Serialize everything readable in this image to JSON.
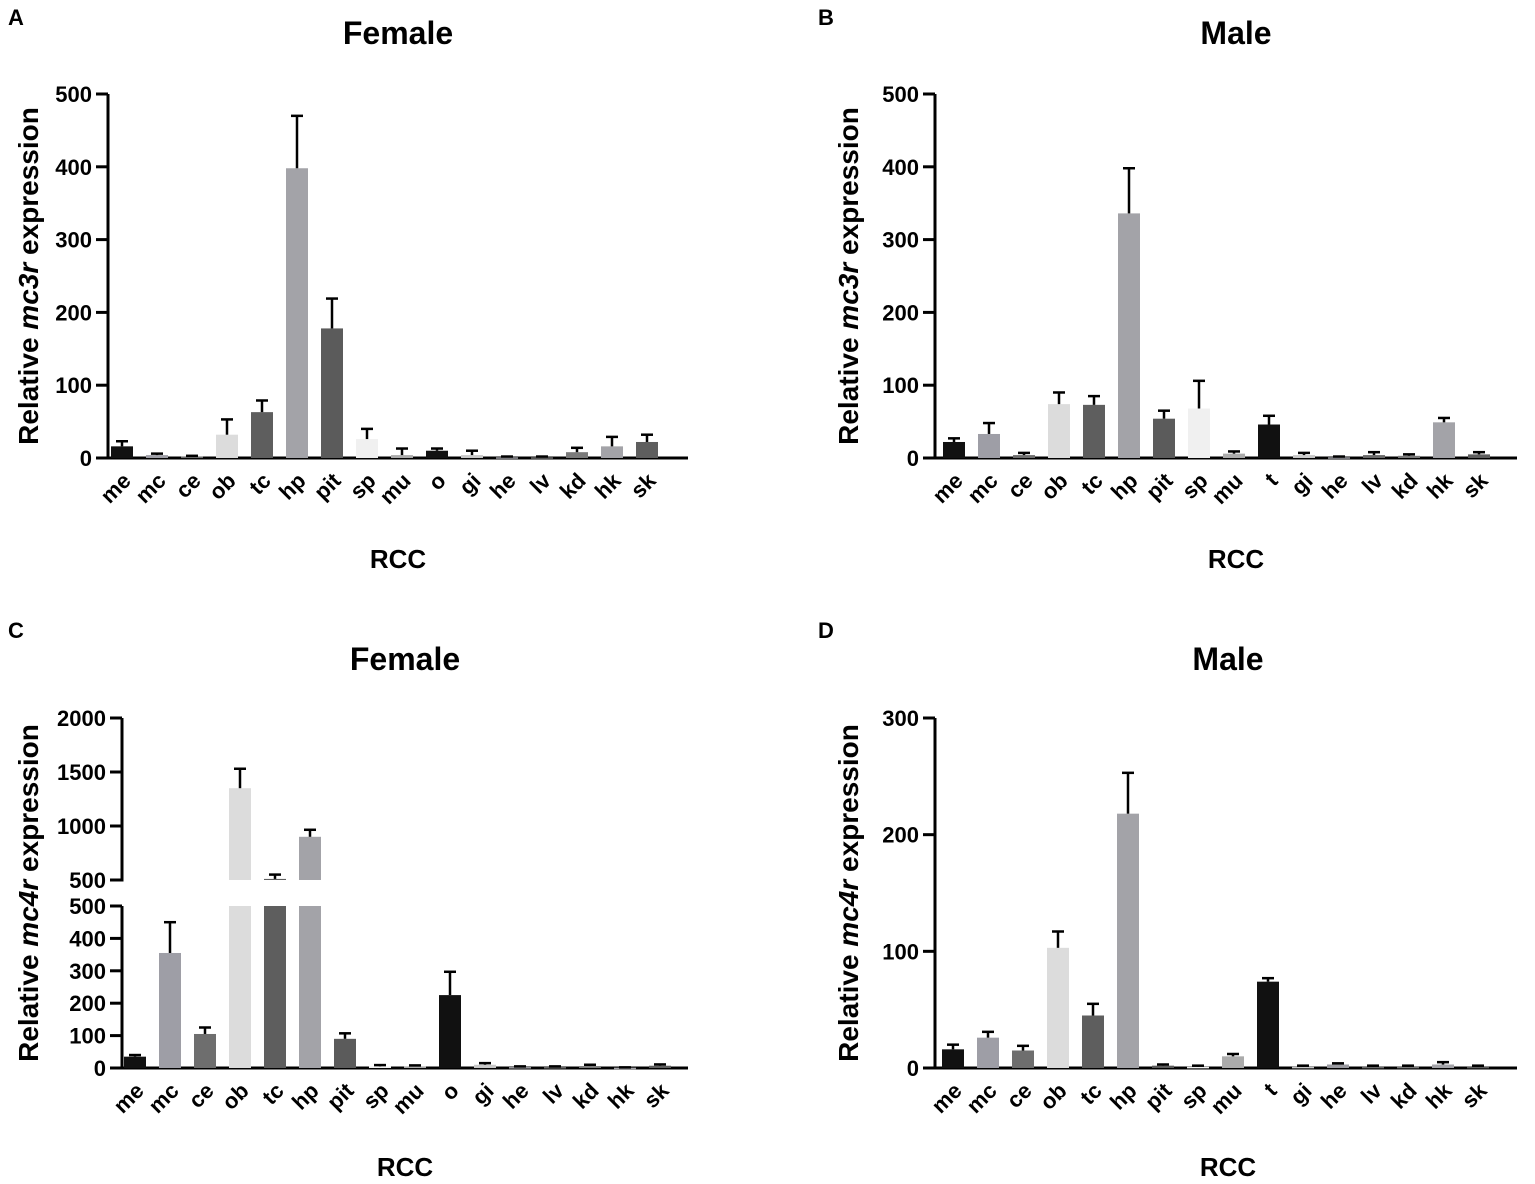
{
  "chart_data": [
    {
      "type": "bar",
      "panel": "A",
      "title": "Female",
      "ylabel_prefix": "Relative ",
      "ylabel_gene": "mc3r",
      "ylabel_suffix": " expression",
      "xlabel": "RCC",
      "ylim": [
        0,
        500
      ],
      "yticks": [
        0,
        100,
        200,
        300,
        400,
        500
      ],
      "categories": [
        "me",
        "mc",
        "ce",
        "ob",
        "tc",
        "hp",
        "pit",
        "sp",
        "mu",
        "o",
        "gi",
        "he",
        "lv",
        "kd",
        "hk",
        "sk"
      ],
      "values": [
        16,
        4,
        2,
        32,
        63,
        398,
        178,
        26,
        4,
        10,
        4,
        1,
        1,
        8,
        16,
        22
      ],
      "errors": [
        7,
        2,
        1,
        21,
        16,
        72,
        41,
        14,
        9,
        3,
        6,
        1,
        1,
        6,
        13,
        10
      ],
      "colors": [
        "#111111",
        "#9e9ea6",
        "#6e6e6e",
        "#dcdcdc",
        "#5e5e5e",
        "#a3a3a8",
        "#5b5b5b",
        "#f0f0f0",
        "#ababab",
        "#111111",
        "#c8c8c8",
        "#9a9aa0",
        "#6a6a6a",
        "#7a7a7a",
        "#a3a3a8",
        "#5e5e5e"
      ]
    },
    {
      "type": "bar",
      "panel": "B",
      "title": "Male",
      "ylabel_prefix": "Relative ",
      "ylabel_gene": "mc3r",
      "ylabel_suffix": " expression",
      "xlabel": "RCC",
      "ylim": [
        0,
        500
      ],
      "yticks": [
        0,
        100,
        200,
        300,
        400,
        500
      ],
      "categories": [
        "me",
        "mc",
        "ce",
        "ob",
        "tc",
        "hp",
        "pit",
        "sp",
        "mu",
        "t",
        "gi",
        "he",
        "lv",
        "kd",
        "hk",
        "sk"
      ],
      "values": [
        22,
        33,
        4,
        74,
        73,
        336,
        54,
        68,
        6,
        46,
        4,
        1,
        4,
        3,
        49,
        5
      ],
      "errors": [
        5,
        15,
        3,
        16,
        12,
        62,
        11,
        38,
        3,
        12,
        3,
        1,
        4,
        2,
        6,
        3
      ],
      "colors": [
        "#111111",
        "#9e9ea6",
        "#6e6e6e",
        "#dcdcdc",
        "#5e5e5e",
        "#a3a3a8",
        "#5b5b5b",
        "#f0f0f0",
        "#ababab",
        "#111111",
        "#c8c8c8",
        "#9a9aa0",
        "#6a6a6a",
        "#7a7a7a",
        "#a3a3a8",
        "#5e5e5e"
      ]
    },
    {
      "type": "bar",
      "panel": "C",
      "title": "Female",
      "ylabel_prefix": "Relative ",
      "ylabel_gene": "mc4r",
      "ylabel_suffix": " expression",
      "xlabel": "RCC",
      "broken_axis": true,
      "ylim_lower": [
        0,
        500
      ],
      "yticks_lower": [
        0,
        100,
        200,
        300,
        400,
        500
      ],
      "ylim_upper": [
        500,
        2000
      ],
      "yticks_upper": [
        500,
        1000,
        1500,
        2000
      ],
      "categories": [
        "me",
        "mc",
        "ce",
        "ob",
        "tc",
        "hp",
        "pit",
        "sp",
        "mu",
        "o",
        "gi",
        "he",
        "lv",
        "kd",
        "hk",
        "sk"
      ],
      "values": [
        35,
        355,
        105,
        1350,
        510,
        900,
        90,
        5,
        5,
        225,
        10,
        3,
        3,
        6,
        1,
        7
      ],
      "errors": [
        5,
        95,
        20,
        180,
        40,
        65,
        17,
        4,
        3,
        72,
        5,
        2,
        2,
        4,
        1,
        4
      ],
      "colors": [
        "#111111",
        "#9e9ea6",
        "#6e6e6e",
        "#dcdcdc",
        "#5e5e5e",
        "#a3a3a8",
        "#5b5b5b",
        "#f0f0f0",
        "#ababab",
        "#111111",
        "#c8c8c8",
        "#9a9aa0",
        "#6a6a6a",
        "#7a7a7a",
        "#a3a3a8",
        "#5e5e5e"
      ]
    },
    {
      "type": "bar",
      "panel": "D",
      "title": "Male",
      "ylabel_prefix": "Relative ",
      "ylabel_gene": "mc4r",
      "ylabel_suffix": " expression",
      "xlabel": "RCC",
      "ylim": [
        0,
        300
      ],
      "yticks": [
        0,
        100,
        200,
        300
      ],
      "categories": [
        "me",
        "mc",
        "ce",
        "ob",
        "tc",
        "hp",
        "pit",
        "sp",
        "mu",
        "t",
        "gi",
        "he",
        "lv",
        "kd",
        "hk",
        "sk"
      ],
      "values": [
        16,
        26,
        15,
        103,
        45,
        218,
        2,
        1,
        10,
        74,
        1,
        3,
        1,
        1,
        3,
        1
      ],
      "errors": [
        4,
        5,
        4,
        14,
        10,
        35,
        1,
        1,
        2,
        3,
        1,
        1,
        1,
        1,
        2,
        1
      ],
      "colors": [
        "#111111",
        "#9e9ea6",
        "#6e6e6e",
        "#dcdcdc",
        "#5e5e5e",
        "#a3a3a8",
        "#5b5b5b",
        "#f0f0f0",
        "#ababab",
        "#111111",
        "#c8c8c8",
        "#9a9aa0",
        "#6a6a6a",
        "#7a7a7a",
        "#a3a3a8",
        "#5e5e5e"
      ]
    }
  ]
}
